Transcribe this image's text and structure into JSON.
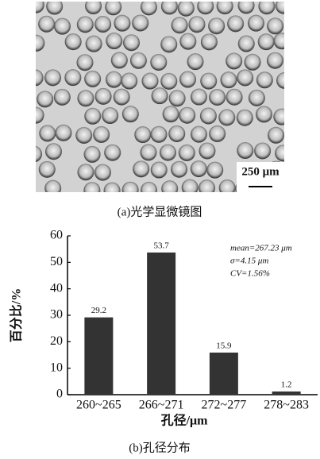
{
  "image": {
    "scale_bar": "250 μm",
    "caption": "(a)光学显微镜图"
  },
  "chart_data": {
    "type": "bar",
    "categories": [
      "260~265",
      "266~271",
      "272~277",
      "278~283"
    ],
    "values": [
      29.2,
      53.7,
      15.9,
      1.2
    ],
    "color": "#333333",
    "ylim": [
      0,
      60
    ],
    "yticks": [
      0,
      10,
      20,
      30,
      40,
      50,
      60
    ],
    "y_label": "百分比/%",
    "x_label": "孔径/μm",
    "annotations": [
      "mean=267.23 μm",
      "σ=4.15 μm",
      "CV=1.56%"
    ],
    "caption": "(b)孔径分布"
  }
}
